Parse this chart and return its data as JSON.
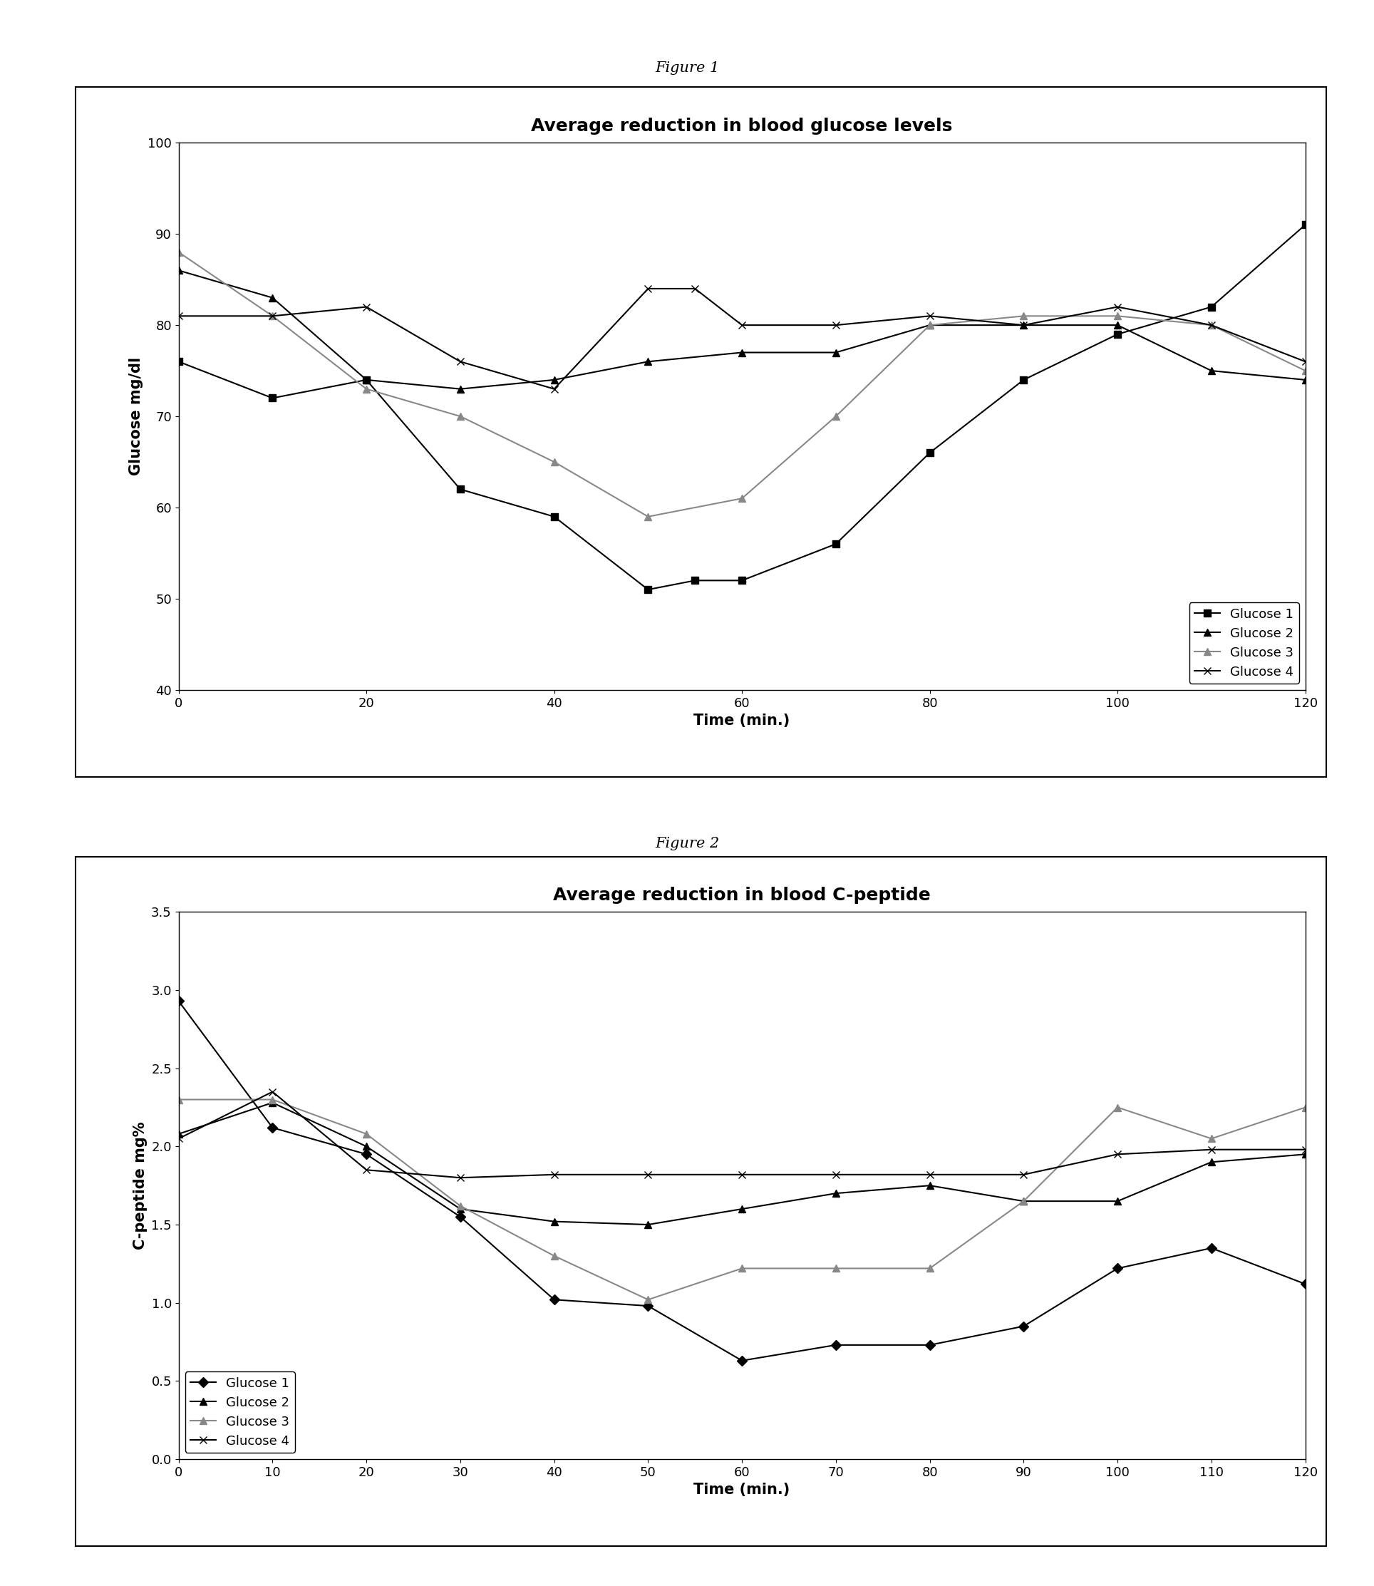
{
  "fig1": {
    "title": "Average reduction in blood glucose levels",
    "xlabel": "Time (min.)",
    "ylabel": "Glucose mg/dl",
    "fig_label": "Figure 1",
    "xlim": [
      0,
      120
    ],
    "ylim": [
      40,
      100
    ],
    "yticks": [
      40,
      50,
      60,
      70,
      80,
      90,
      100
    ],
    "xticks": [
      0,
      20,
      40,
      60,
      80,
      100,
      120
    ],
    "series": {
      "Glucose 1": {
        "x": [
          0,
          10,
          20,
          30,
          40,
          50,
          55,
          60,
          70,
          80,
          90,
          100,
          110,
          120
        ],
        "y": [
          76,
          72,
          74,
          62,
          59,
          51,
          52,
          52,
          56,
          66,
          74,
          79,
          82,
          91
        ],
        "marker": "s",
        "color": "#000000",
        "mfc": "#000000",
        "linestyle": "-"
      },
      "Glucose 2": {
        "x": [
          0,
          10,
          20,
          30,
          40,
          50,
          60,
          70,
          80,
          90,
          100,
          110,
          120
        ],
        "y": [
          86,
          83,
          74,
          73,
          74,
          76,
          77,
          77,
          80,
          80,
          80,
          75,
          74
        ],
        "marker": "^",
        "color": "#000000",
        "mfc": "#000000",
        "linestyle": "-"
      },
      "Glucose 3": {
        "x": [
          0,
          10,
          20,
          30,
          40,
          50,
          60,
          70,
          80,
          90,
          100,
          110,
          120
        ],
        "y": [
          88,
          81,
          73,
          70,
          65,
          59,
          61,
          70,
          80,
          81,
          81,
          80,
          75
        ],
        "marker": "^",
        "color": "#888888",
        "mfc": "#888888",
        "linestyle": "-"
      },
      "Glucose 4": {
        "x": [
          0,
          10,
          20,
          30,
          40,
          50,
          55,
          60,
          70,
          80,
          90,
          100,
          110,
          120
        ],
        "y": [
          81,
          81,
          82,
          76,
          73,
          84,
          84,
          80,
          80,
          81,
          80,
          82,
          80,
          76
        ],
        "marker": "x",
        "color": "#000000",
        "mfc": "none",
        "linestyle": "-"
      }
    },
    "legend_order": [
      "Glucose 1",
      "Glucose 2",
      "Glucose 3",
      "Glucose 4"
    ],
    "legend_loc": "lower right"
  },
  "fig2": {
    "title": "Average reduction in blood C-peptide",
    "xlabel": "Time (min.)",
    "ylabel": "C-peptide mg%",
    "fig_label": "Figure 2",
    "xlim": [
      0,
      120
    ],
    "ylim": [
      0,
      3.5
    ],
    "yticks": [
      0,
      0.5,
      1.0,
      1.5,
      2.0,
      2.5,
      3.0,
      3.5
    ],
    "xticks": [
      0,
      10,
      20,
      30,
      40,
      50,
      60,
      70,
      80,
      90,
      100,
      110,
      120
    ],
    "series": {
      "Glucose 1": {
        "x": [
          0,
          10,
          20,
          30,
          40,
          50,
          60,
          70,
          80,
          90,
          100,
          110,
          120
        ],
        "y": [
          2.93,
          2.12,
          1.95,
          1.55,
          1.02,
          0.98,
          0.63,
          0.73,
          0.73,
          0.85,
          1.22,
          1.35,
          1.12
        ],
        "marker": "D",
        "color": "#000000",
        "mfc": "#000000",
        "linestyle": "-"
      },
      "Glucose 2": {
        "x": [
          0,
          10,
          20,
          30,
          40,
          50,
          60,
          70,
          80,
          90,
          100,
          110,
          120
        ],
        "y": [
          2.08,
          2.28,
          2.0,
          1.6,
          1.52,
          1.5,
          1.6,
          1.7,
          1.75,
          1.65,
          1.65,
          1.9,
          1.95
        ],
        "marker": "^",
        "color": "#000000",
        "mfc": "#000000",
        "linestyle": "-"
      },
      "Glucose 3": {
        "x": [
          0,
          10,
          20,
          30,
          40,
          50,
          60,
          70,
          80,
          90,
          100,
          110,
          120
        ],
        "y": [
          2.3,
          2.3,
          2.08,
          1.62,
          1.3,
          1.02,
          1.22,
          1.22,
          1.22,
          1.65,
          2.25,
          2.05,
          2.25
        ],
        "marker": "^",
        "color": "#888888",
        "mfc": "#888888",
        "linestyle": "-"
      },
      "Glucose 4": {
        "x": [
          0,
          10,
          20,
          30,
          40,
          50,
          60,
          70,
          80,
          90,
          100,
          110,
          120
        ],
        "y": [
          2.05,
          2.35,
          1.85,
          1.8,
          1.82,
          1.82,
          1.82,
          1.82,
          1.82,
          1.82,
          1.95,
          1.98,
          1.98
        ],
        "marker": "x",
        "color": "#000000",
        "mfc": "none",
        "linestyle": "-"
      }
    },
    "legend_order": [
      "Glucose 1",
      "Glucose 2",
      "Glucose 3",
      "Glucose 4"
    ],
    "legend_loc": "lower left"
  },
  "bg_color": "#ffffff",
  "title_fontsize": 18,
  "axis_label_fontsize": 15,
  "tick_fontsize": 13,
  "legend_fontsize": 13,
  "fig_label_fontsize": 15
}
